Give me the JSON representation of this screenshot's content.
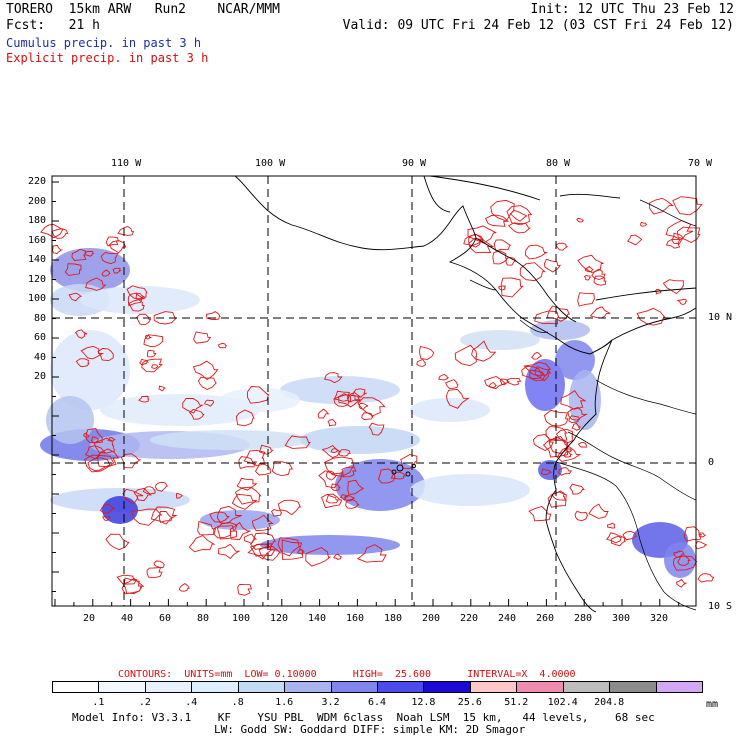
{
  "header": {
    "title": "TORERO  15km ARW   Run2    NCAR/MMM",
    "init": "Init: 12 UTC Thu 23 Feb 12",
    "fcst": "Fcst:   21 h",
    "valid": "Valid: 09 UTC Fri 24 Feb 12 (03 CST Fri 24 Feb 12)",
    "field1": "Cumulus precip. in past 3 h",
    "field2": "Explicit precip. in past 3 h"
  },
  "map": {
    "top_lon_labels": [
      "110 W",
      "100 W",
      "90 W",
      "80 W",
      "70 W"
    ],
    "right_lat_labels": [
      "10 N",
      "0",
      "10 S"
    ],
    "y_ticks": [
      "220",
      "200",
      "180",
      "160",
      "140",
      "120",
      "100",
      "80",
      "60",
      "40",
      "20"
    ],
    "x_ticks": [
      "20",
      "40",
      "60",
      "80",
      "100",
      "120",
      "140",
      "160",
      "180",
      "200",
      "220",
      "240",
      "260",
      "280",
      "300",
      "320"
    ]
  },
  "contours": {
    "line": "CONTOURS:  UNITS=mm  LOW= 0.10000      HIGH=  25.600      INTERVAL=X  4.0000"
  },
  "colorbar": {
    "labels": [
      ".1",
      ".2",
      ".4",
      ".8",
      "1.6",
      "3.2",
      "6.4",
      "12.8",
      "25.6",
      "51.2",
      "102.4",
      "204.8"
    ],
    "unit": "mm",
    "colors": [
      "#ffffff",
      "#f2f8ff",
      "#e8f2ff",
      "#dceeff",
      "#c2dcf6",
      "#a9b4ef",
      "#7f85ec",
      "#4c4cee",
      "#1a0ad6",
      "#ffc8c8",
      "#f08cb0",
      "#bdbdbd",
      "#8c8c8c",
      "#d2a8f4"
    ]
  },
  "footer": {
    "line1": "Model Info: V3.3.1    KF    YSU PBL  WDM 6class  Noah LSM  15 km,   44 levels,    68 sec",
    "line2": "LW: Godd SW: Goddard DIFF: simple KM: 2D Smagor"
  }
}
